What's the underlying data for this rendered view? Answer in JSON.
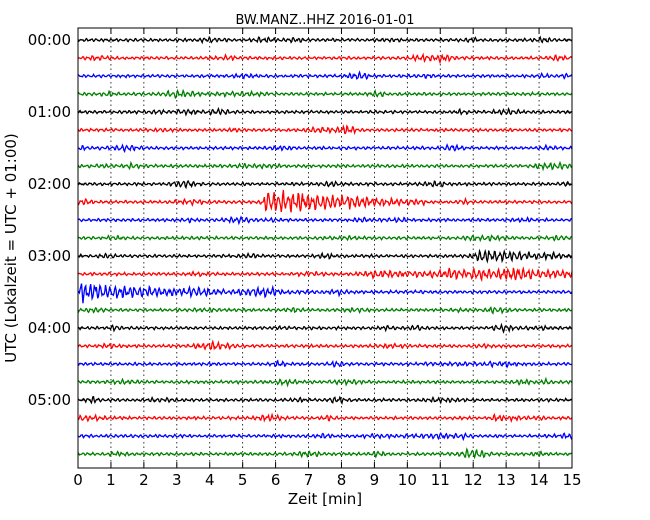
{
  "chart_data": {
    "type": "line",
    "title": "BW.MANZ..HHZ 2016-01-01",
    "xlabel": "Zeit  [min]",
    "ylabel": "UTC (Lokalzeit = UTC + 01:00)",
    "xlim": [
      0,
      15
    ],
    "x_ticks": [
      "0",
      "1",
      "2",
      "3",
      "4",
      "5",
      "6",
      "7",
      "8",
      "9",
      "10",
      "11",
      "12",
      "13",
      "14",
      "15"
    ],
    "y_tick_labels": [
      "00:00",
      "01:00",
      "02:00",
      "03:00",
      "04:00",
      "05:00"
    ],
    "trace_minutes": 15,
    "trace_count": 24,
    "trace_colors": [
      "#000000",
      "#ff0000",
      "#0000ff",
      "#008000"
    ],
    "grid": "vertical dotted at each minute",
    "events": [
      {
        "trace": 9,
        "start_min": 5.5,
        "peak_min": 5.8,
        "end_min": 10.5,
        "relative_amplitude": 3.0
      },
      {
        "trace": 12,
        "start_min": 11.8,
        "peak_min": 12.6,
        "end_min": 14.5,
        "relative_amplitude": 1.0
      },
      {
        "trace": 13,
        "start_min": 8.5,
        "peak_min": 13.0,
        "end_min": 15.0,
        "relative_amplitude": 1.2
      },
      {
        "trace": 14,
        "start_min": 0.0,
        "peak_min": 0.1,
        "end_min": 15.0,
        "relative_amplitude": 2.2
      }
    ]
  }
}
